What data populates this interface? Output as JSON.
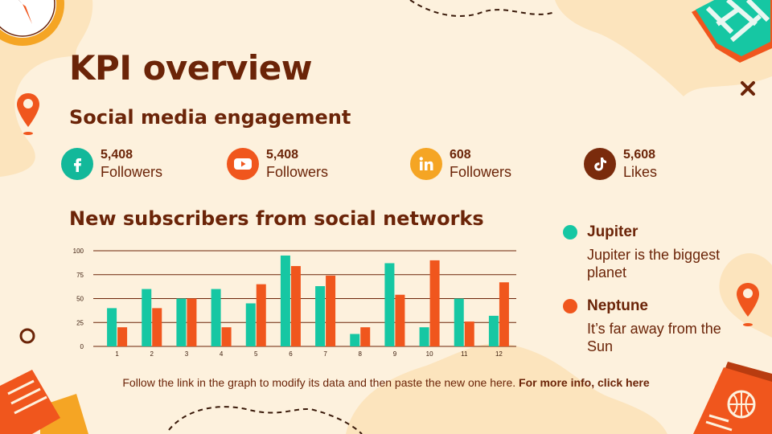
{
  "slide": {
    "title": "KPI overview",
    "subtitle": "Social media engagement",
    "stats": [
      {
        "icon": "facebook-icon",
        "color": "#13b89a",
        "value": "5,408",
        "label": "Followers"
      },
      {
        "icon": "youtube-icon",
        "color": "#f0561d",
        "value": "5,408",
        "label": "Followers"
      },
      {
        "icon": "linkedin-icon",
        "color": "#f5a524",
        "value": "608",
        "label": "Followers"
      },
      {
        "icon": "tiktok-icon",
        "color": "#7a2b0c",
        "value": "5,608",
        "label": "Likes"
      }
    ],
    "chart_title": "New subscribers from social networks",
    "legend": [
      {
        "name": "Jupiter",
        "desc": "Jupiter is the biggest planet",
        "color": "#16c7a3"
      },
      {
        "name": "Neptune",
        "desc": "It’s far away from the Sun",
        "color": "#f0561d"
      }
    ],
    "footer_text": "Follow the link in the graph to modify its data and then paste the new one here.",
    "footer_link": "For more info, click here"
  },
  "chart_data": {
    "type": "bar",
    "categories": [
      "1",
      "2",
      "3",
      "4",
      "5",
      "6",
      "7",
      "8",
      "9",
      "10",
      "11",
      "12"
    ],
    "series": [
      {
        "name": "Jupiter",
        "color": "#16c7a3",
        "values": [
          40,
          60,
          50,
          60,
          45,
          95,
          63,
          13,
          87,
          20,
          50,
          32
        ]
      },
      {
        "name": "Neptune",
        "color": "#f0561d",
        "values": [
          20,
          40,
          50,
          20,
          65,
          84,
          74,
          20,
          54,
          90,
          26,
          67
        ]
      }
    ],
    "yticks": [
      0,
      25,
      50,
      75,
      100
    ],
    "ylim": [
      0,
      100
    ],
    "grid": true
  }
}
